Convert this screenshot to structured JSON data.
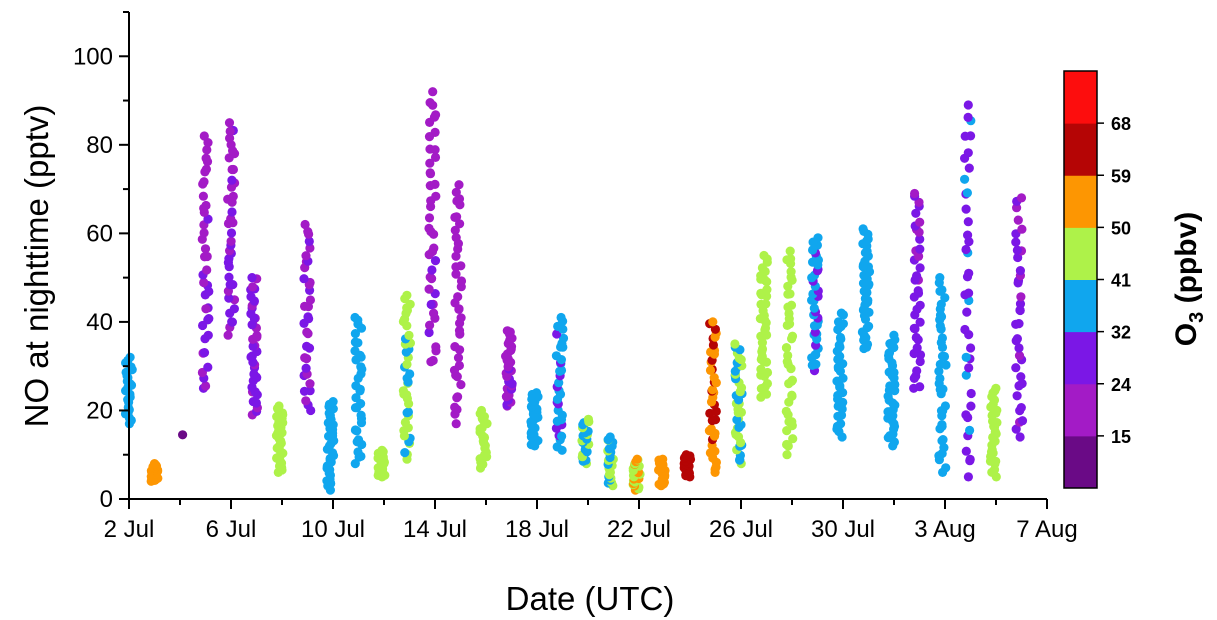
{
  "chart_data": {
    "type": "scatter",
    "xlabel": "Date (UTC)",
    "ylabel": "NO at nighttime (pptv)",
    "xlim": [
      "2 Jul",
      "7 Aug"
    ],
    "ylim": [
      0,
      110
    ],
    "x_ticks": [
      "2 Jul",
      "6 Jul",
      "10 Jul",
      "14 Jul",
      "18 Jul",
      "22 Jul",
      "26 Jul",
      "30 Jul",
      "3 Aug",
      "7 Aug"
    ],
    "y_ticks": [
      "0",
      "20",
      "40",
      "60",
      "80",
      "100"
    ],
    "grid": false,
    "colorbar": {
      "title_main": "O",
      "title_sub": "3",
      "title_unit": " (ppbv)",
      "tick_labels": [
        "15",
        "24",
        "32",
        "41",
        "50",
        "59",
        "68"
      ],
      "bins": [
        {
          "range": [
            6,
            15
          ],
          "color": "#6a0a86"
        },
        {
          "range": [
            15,
            24
          ],
          "color": "#a31bc6"
        },
        {
          "range": [
            24,
            32
          ],
          "color": "#7b17e6"
        },
        {
          "range": [
            32,
            41
          ],
          "color": "#10a6ee"
        },
        {
          "range": [
            41,
            50
          ],
          "color": "#aef249"
        },
        {
          "range": [
            50,
            59
          ],
          "color": "#fd9602"
        },
        {
          "range": [
            59,
            68
          ],
          "color": "#b50505"
        },
        {
          "range": [
            68,
            77
          ],
          "color": "#fd0d0d"
        }
      ]
    },
    "series": [
      {
        "night": "2 Jul",
        "day": 0.0,
        "no_range": [
          17,
          32
        ],
        "o3": 36,
        "n": 24
      },
      {
        "night": "3 Jul",
        "day": 1.0,
        "no_range": [
          4,
          8
        ],
        "o3": 55,
        "n": 28
      },
      {
        "night": "4 Jul",
        "day": 2.0,
        "no_range": [
          14.5,
          14.5
        ],
        "o3": 12,
        "n": 1
      },
      {
        "night": "5 Jul",
        "day": 3.0,
        "no_range": [
          25,
          82
        ],
        "o3": 25,
        "n": 40
      },
      {
        "night": "6 Jul",
        "day": 4.0,
        "no_range": [
          37,
          85
        ],
        "o3": 25,
        "n": 40
      },
      {
        "night": "7 Jul",
        "day": 4.9,
        "no_range": [
          19,
          50
        ],
        "o3": 26,
        "n": 40
      },
      {
        "night": "8 Jul",
        "day": 5.9,
        "no_range": [
          6,
          21
        ],
        "o3": 44,
        "n": 32
      },
      {
        "night": "9 Jul",
        "day": 7.0,
        "no_range": [
          20,
          62
        ],
        "o3": 25,
        "n": 34
      },
      {
        "night": "10 Jul",
        "day": 7.9,
        "no_range": [
          2,
          22
        ],
        "o3": 38,
        "n": 36
      },
      {
        "night": "11 Jul",
        "day": 9.0,
        "no_range": [
          8,
          41
        ],
        "o3": 37,
        "n": 34
      },
      {
        "night": "12 Jul",
        "day": 9.9,
        "no_range": [
          5,
          11
        ],
        "o3": 44,
        "n": 26
      },
      {
        "night": "13 Jul",
        "day": 10.9,
        "no_range": [
          9,
          46
        ],
        "o3": 43,
        "n": 40
      },
      {
        "night": "14 Jul",
        "day": 11.9,
        "no_range": [
          31,
          92
        ],
        "o3": 22,
        "n": 42
      },
      {
        "night": "15 Jul",
        "day": 12.9,
        "no_range": [
          17,
          71
        ],
        "o3": 21,
        "n": 40
      },
      {
        "night": "16 Jul",
        "day": 13.9,
        "no_range": [
          7,
          20
        ],
        "o3": 45,
        "n": 22
      },
      {
        "night": "17 Jul",
        "day": 14.9,
        "no_range": [
          21,
          38
        ],
        "o3": 24,
        "n": 34
      },
      {
        "night": "18 Jul",
        "day": 15.9,
        "no_range": [
          12,
          24
        ],
        "o3": 38,
        "n": 30
      },
      {
        "night": "19 Jul",
        "day": 16.9,
        "no_range": [
          11,
          41
        ],
        "o3": 34,
        "n": 34
      },
      {
        "night": "20 Jul",
        "day": 17.9,
        "no_range": [
          8,
          18
        ],
        "o3": 40,
        "n": 24
      },
      {
        "night": "21 Jul",
        "day": 18.9,
        "no_range": [
          3,
          14
        ],
        "o3": 40,
        "n": 26
      },
      {
        "night": "22 Jul",
        "day": 19.9,
        "no_range": [
          2,
          9
        ],
        "o3": 50,
        "n": 24
      },
      {
        "night": "23 Jul",
        "day": 20.9,
        "no_range": [
          3,
          9
        ],
        "o3": 55,
        "n": 26
      },
      {
        "night": "24 Jul",
        "day": 21.9,
        "no_range": [
          5,
          10
        ],
        "o3": 63,
        "n": 24
      },
      {
        "night": "25 Jul",
        "day": 22.9,
        "no_range": [
          6,
          40
        ],
        "o3": 58,
        "n": 40
      },
      {
        "night": "26 Jul",
        "day": 23.9,
        "no_range": [
          8,
          35
        ],
        "o3": 41,
        "n": 40
      },
      {
        "night": "27 Jul",
        "day": 24.9,
        "no_range": [
          23,
          55
        ],
        "o3": 45,
        "n": 40
      },
      {
        "night": "28 Jul",
        "day": 25.9,
        "no_range": [
          10,
          56
        ],
        "o3": 44,
        "n": 40
      },
      {
        "night": "29 Jul",
        "day": 26.9,
        "no_range": [
          29,
          59
        ],
        "o3": 33,
        "n": 40
      },
      {
        "night": "30 Jul",
        "day": 27.9,
        "no_range": [
          14,
          42
        ],
        "o3": 38,
        "n": 34
      },
      {
        "night": "31 Jul",
        "day": 28.9,
        "no_range": [
          34,
          61
        ],
        "o3": 38,
        "n": 40
      },
      {
        "night": "1 Aug",
        "day": 29.9,
        "no_range": [
          12,
          37
        ],
        "o3": 38,
        "n": 36
      },
      {
        "night": "2 Aug",
        "day": 30.9,
        "no_range": [
          25,
          69
        ],
        "o3": 28,
        "n": 38
      },
      {
        "night": "3 Aug",
        "day": 31.9,
        "no_range": [
          6,
          50
        ],
        "o3": 36,
        "n": 40
      },
      {
        "night": "4 Aug",
        "day": 32.9,
        "no_range": [
          5,
          89
        ],
        "o3": 30,
        "n": 40
      },
      {
        "night": "5 Aug",
        "day": 33.9,
        "no_range": [
          5,
          25
        ],
        "o3": 46,
        "n": 32
      },
      {
        "night": "6 Aug",
        "day": 34.9,
        "no_range": [
          14,
          68
        ],
        "o3": 26,
        "n": 36
      }
    ]
  }
}
